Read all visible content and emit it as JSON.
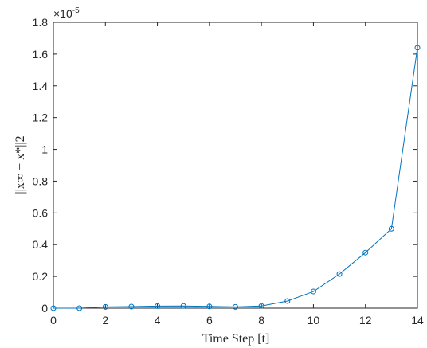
{
  "chart_data": {
    "type": "line",
    "title": "",
    "xlabel": "Time Step [t]",
    "ylabel": "||x∞ − x*||2",
    "x": [
      0,
      1,
      2,
      3,
      4,
      5,
      6,
      7,
      8,
      9,
      10,
      11,
      12,
      13,
      14
    ],
    "series": [
      {
        "values": [
          0.0,
          0.0,
          8e-08,
          1e-07,
          1.3e-07,
          1.4e-07,
          1.1e-07,
          8e-08,
          1.4e-07,
          4.5e-07,
          1.05e-06,
          2.15e-06,
          3.5e-06,
          5e-06,
          1.64e-05
        ],
        "color": "#0072BD",
        "marker": "circle"
      }
    ],
    "xlim": [
      0,
      14
    ],
    "ylim": [
      0,
      1.8e-05
    ],
    "xticks": [
      "0",
      "2",
      "4",
      "6",
      "8",
      "10",
      "12",
      "14"
    ],
    "yticks": [
      "0",
      "0.2",
      "0.4",
      "0.6",
      "0.8",
      "1",
      "1.2",
      "1.4",
      "1.6",
      "1.8"
    ],
    "y_multiplier": "×10",
    "y_multiplier_exp": "-5",
    "grid": false,
    "legend": "none"
  }
}
